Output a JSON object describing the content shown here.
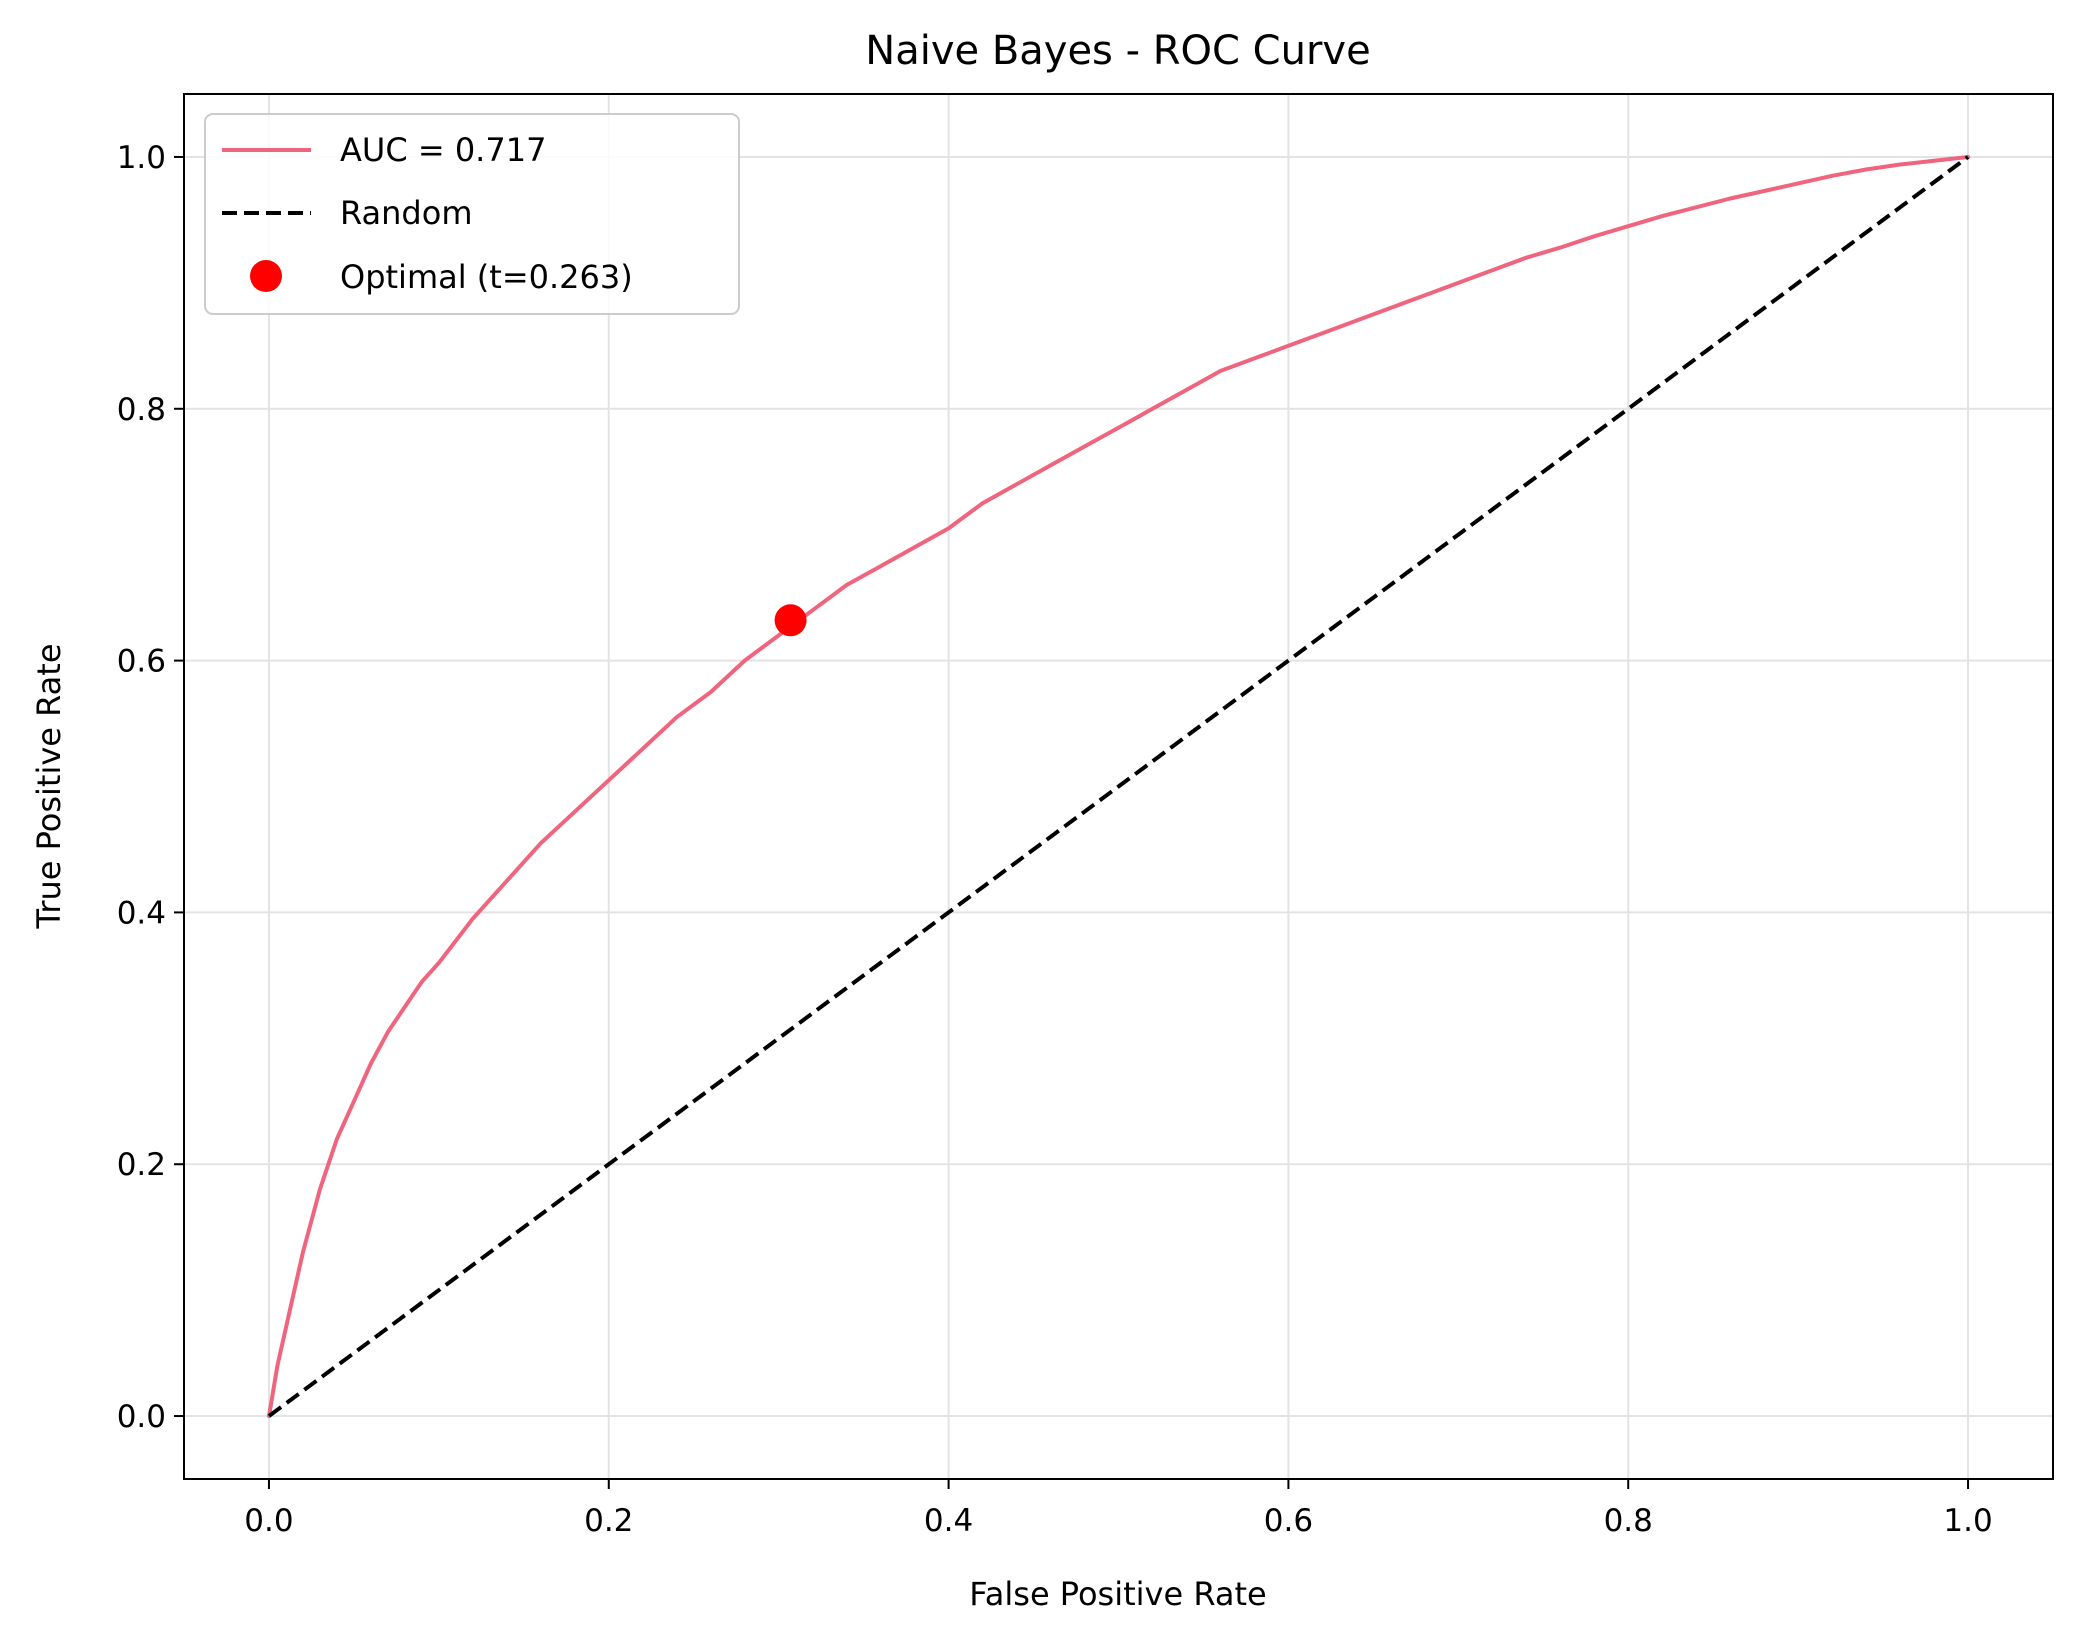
{
  "chart_data": {
    "type": "line",
    "title": "Naive Bayes - ROC Curve",
    "xlabel": "False Positive Rate",
    "ylabel": "True Positive Rate",
    "xlim": [
      -0.05,
      1.05
    ],
    "ylim": [
      -0.05,
      1.05
    ],
    "xticks": [
      "0.0",
      "0.2",
      "0.4",
      "0.6",
      "0.8",
      "1.0"
    ],
    "yticks": [
      "0.0",
      "0.2",
      "0.4",
      "0.6",
      "0.8",
      "1.0"
    ],
    "grid": true,
    "legend_position": "upper-left",
    "series": [
      {
        "name": "AUC = 0.717",
        "kind": "solid-line",
        "color": "#f0657e",
        "x": [
          0.0,
          0.005,
          0.01,
          0.015,
          0.02,
          0.025,
          0.03,
          0.035,
          0.04,
          0.05,
          0.06,
          0.07,
          0.08,
          0.09,
          0.1,
          0.12,
          0.14,
          0.16,
          0.18,
          0.2,
          0.22,
          0.24,
          0.26,
          0.28,
          0.3,
          0.32,
          0.34,
          0.36,
          0.38,
          0.4,
          0.42,
          0.44,
          0.46,
          0.48,
          0.5,
          0.52,
          0.54,
          0.56,
          0.58,
          0.6,
          0.62,
          0.64,
          0.66,
          0.68,
          0.7,
          0.72,
          0.74,
          0.76,
          0.78,
          0.8,
          0.82,
          0.84,
          0.86,
          0.88,
          0.9,
          0.92,
          0.94,
          0.96,
          0.98,
          1.0
        ],
        "y": [
          0.0,
          0.04,
          0.07,
          0.1,
          0.13,
          0.155,
          0.18,
          0.2,
          0.22,
          0.25,
          0.28,
          0.305,
          0.325,
          0.345,
          0.36,
          0.395,
          0.425,
          0.455,
          0.48,
          0.505,
          0.53,
          0.555,
          0.575,
          0.6,
          0.62,
          0.64,
          0.66,
          0.675,
          0.69,
          0.705,
          0.725,
          0.74,
          0.755,
          0.77,
          0.785,
          0.8,
          0.815,
          0.83,
          0.84,
          0.85,
          0.86,
          0.87,
          0.88,
          0.89,
          0.9,
          0.91,
          0.92,
          0.928,
          0.937,
          0.945,
          0.953,
          0.96,
          0.967,
          0.973,
          0.979,
          0.985,
          0.99,
          0.994,
          0.997,
          1.0
        ]
      },
      {
        "name": "Random",
        "kind": "dashed-line",
        "color": "#000000",
        "x": [
          0.0,
          1.0
        ],
        "y": [
          0.0,
          1.0
        ]
      },
      {
        "name": "Optimal (t=0.263)",
        "kind": "marker",
        "color": "#ff0000",
        "x": [
          0.307
        ],
        "y": [
          0.632
        ]
      }
    ]
  }
}
